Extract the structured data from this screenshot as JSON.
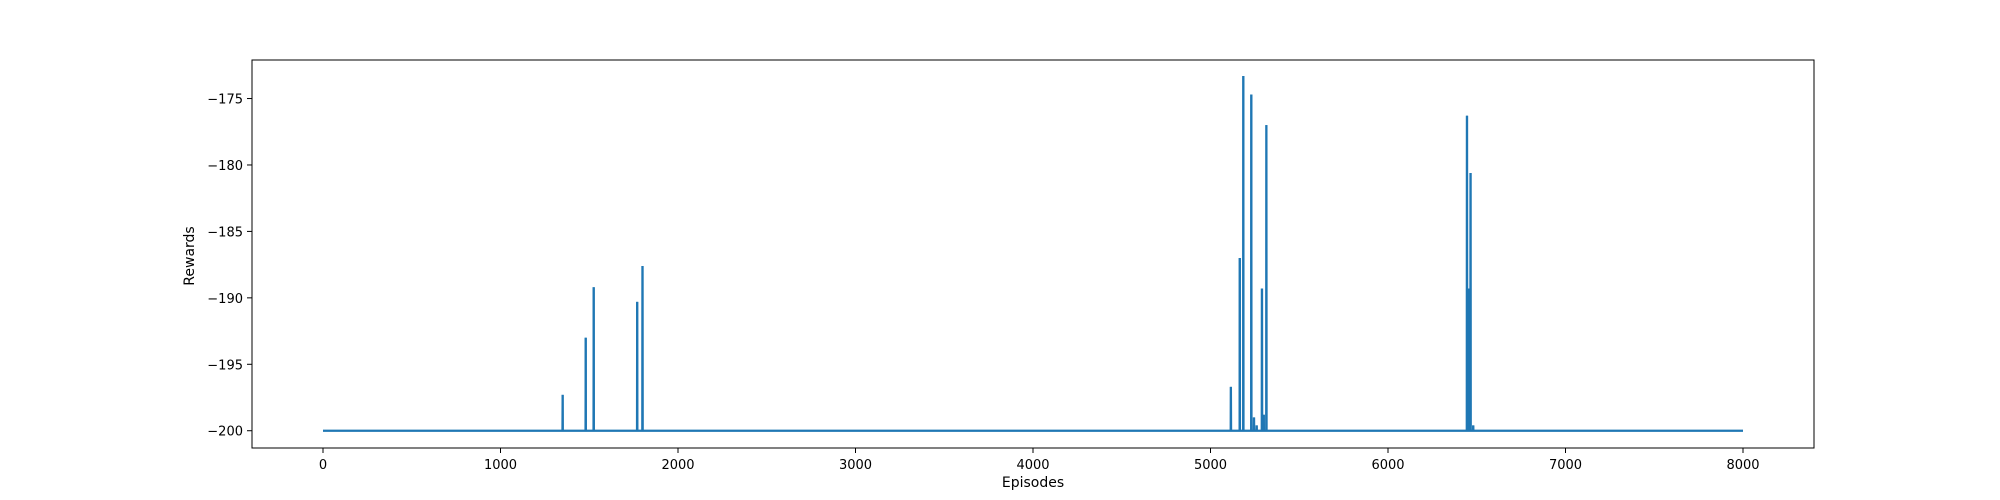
{
  "chart_data": {
    "type": "line",
    "title": "",
    "xlabel": "Episodes",
    "ylabel": "Rewards",
    "xlim": [
      -400,
      8400
    ],
    "ylim": [
      -201.3,
      -172.1
    ],
    "xticks": [
      0,
      1000,
      2000,
      3000,
      4000,
      5000,
      6000,
      7000,
      8000
    ],
    "yticks": [
      -200,
      -195,
      -190,
      -185,
      -180,
      -175
    ],
    "xtick_labels": [
      "0",
      "1000",
      "2000",
      "3000",
      "4000",
      "5000",
      "6000",
      "7000",
      "8000"
    ],
    "ytick_labels": [
      "−200",
      "−195",
      "−190",
      "−185",
      "−180",
      "−175"
    ],
    "grid": false,
    "series": [
      {
        "color": "#1f77b4",
        "baseline": -200,
        "x_range": [
          0,
          8000
        ],
        "spikes": [
          {
            "x": 1350,
            "y": -197.3
          },
          {
            "x": 1480,
            "y": -193.0
          },
          {
            "x": 1525,
            "y": -189.2
          },
          {
            "x": 1770,
            "y": -190.3
          },
          {
            "x": 1800,
            "y": -187.6
          },
          {
            "x": 5115,
            "y": -196.7
          },
          {
            "x": 5165,
            "y": -187.0
          },
          {
            "x": 5185,
            "y": -173.3
          },
          {
            "x": 5230,
            "y": -174.7
          },
          {
            "x": 5245,
            "y": -199.0
          },
          {
            "x": 5260,
            "y": -199.6
          },
          {
            "x": 5290,
            "y": -189.3
          },
          {
            "x": 5300,
            "y": -198.8
          },
          {
            "x": 5315,
            "y": -177.0
          },
          {
            "x": 6445,
            "y": -176.3
          },
          {
            "x": 6455,
            "y": -189.3
          },
          {
            "x": 6465,
            "y": -180.6
          },
          {
            "x": 6480,
            "y": -199.6
          }
        ]
      }
    ]
  }
}
